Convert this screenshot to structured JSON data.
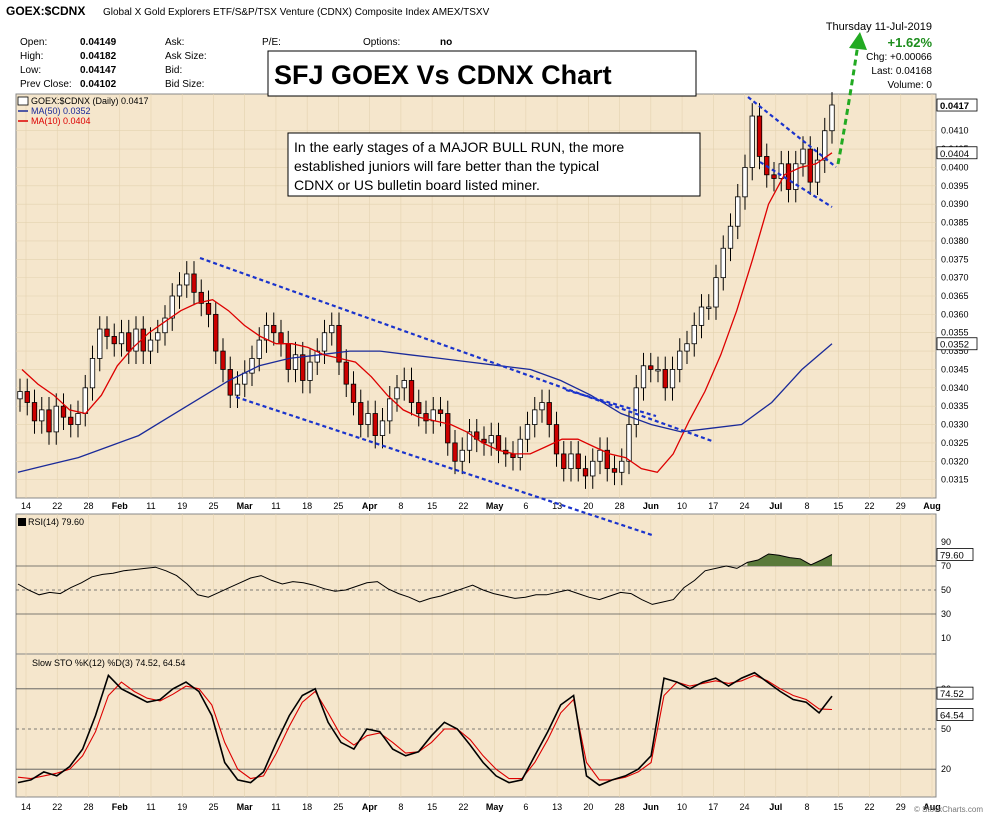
{
  "header": {
    "symbol": "GOEX:$CDNX",
    "description": "Global X Gold Explorers ETF/S&P/TSX Venture (CDNX) Composite Index  AMEX/TSXV",
    "date": "Thursday  11-Jul-2019",
    "watermark": "© StockCharts.com"
  },
  "quote": {
    "rows": [
      {
        "label": "Open:",
        "value": "0.04149"
      },
      {
        "label": "High:",
        "value": "0.04182"
      },
      {
        "label": "Low:",
        "value": "0.04147"
      },
      {
        "label": "Prev Close:",
        "value": "0.04102"
      }
    ],
    "rows2": [
      "Ask:",
      "Ask Size:",
      "Bid:",
      "Bid Size:"
    ],
    "pe_label": "P/E:",
    "options_label": "Options:",
    "options_value": "no",
    "change_pct": "+1.62%",
    "chg": "Chg: +0.00066",
    "last": "Last:  0.04168",
    "volume": "Volume:        0"
  },
  "colors": {
    "background": "#f5e6cc",
    "up": "#ffffff",
    "down": "#cc0000",
    "ma50": "#1a2a99",
    "ma10": "#dd0000",
    "trendline": "#1a33cc",
    "arrow": "#22aa22",
    "rsi_fill": "#5a7a3a",
    "sto_k": "#000000",
    "sto_d": "#dd0000"
  },
  "callout_title": "SFJ GOEX Vs CDNX Chart",
  "callout_text": [
    "In the early stages of a MAJOR BULL RUN, the more",
    "established juniors will fare better than the typical",
    "CDNX or US bulletin board listed miner."
  ],
  "chart_data": [
    {
      "type": "candlestick",
      "legend": [
        "GOEX:$CDNX (Daily) 0.0417",
        "MA(50) 0.0352",
        "MA(10) 0.0404"
      ],
      "ylim": [
        0.031,
        0.042
      ],
      "y_ticks": [
        0.0315,
        0.032,
        0.0325,
        0.033,
        0.0335,
        0.034,
        0.0345,
        0.035,
        0.0355,
        0.036,
        0.0365,
        0.037,
        0.0375,
        0.038,
        0.0385,
        0.039,
        0.0395,
        0.04,
        0.0405,
        0.041
      ],
      "y_tick_labels": [
        "0.0315",
        "0.0320",
        "0.0325",
        "0.0330",
        "0.0335",
        "0.0340",
        "0.0345",
        "0.0350",
        "0.0355",
        "0.0360",
        "0.0365",
        "0.0370",
        "0.0375",
        "0.0380",
        "0.0385",
        "0.0390",
        "0.0395",
        "0.0400",
        "0.0405",
        "0.0410"
      ],
      "price_tags": [
        {
          "label": "0.0417",
          "value": 0.0417
        },
        {
          "label": "0.0404",
          "value": 0.0404
        },
        {
          "label": "0.0352",
          "value": 0.0352
        }
      ],
      "x_labels": [
        "14",
        "22",
        "28",
        "Feb",
        "11",
        "19",
        "25",
        "Mar",
        "11",
        "18",
        "25",
        "Apr",
        "8",
        "15",
        "22",
        "May",
        "6",
        "13",
        "20",
        "28",
        "Jun",
        "10",
        "17",
        "24",
        "Jul",
        "8",
        "15",
        "22",
        "29",
        "Aug"
      ],
      "closes": [
        0.0339,
        0.0336,
        0.0331,
        0.0334,
        0.0328,
        0.0335,
        0.0332,
        0.033,
        0.0333,
        0.034,
        0.0348,
        0.0356,
        0.0354,
        0.0352,
        0.0355,
        0.035,
        0.0356,
        0.035,
        0.0353,
        0.0355,
        0.0359,
        0.0365,
        0.0368,
        0.0371,
        0.0366,
        0.0363,
        0.036,
        0.035,
        0.0345,
        0.0338,
        0.0341,
        0.0344,
        0.0348,
        0.0353,
        0.0357,
        0.0355,
        0.0352,
        0.0345,
        0.0349,
        0.0342,
        0.0347,
        0.035,
        0.0355,
        0.0357,
        0.0347,
        0.0341,
        0.0336,
        0.033,
        0.0333,
        0.0327,
        0.0331,
        0.0337,
        0.034,
        0.0342,
        0.0336,
        0.0333,
        0.0331,
        0.0334,
        0.0333,
        0.0325,
        0.032,
        0.0323,
        0.0328,
        0.0326,
        0.0325,
        0.0327,
        0.0323,
        0.0322,
        0.0321,
        0.0326,
        0.033,
        0.0334,
        0.0336,
        0.033,
        0.0322,
        0.0318,
        0.0322,
        0.0318,
        0.0316,
        0.032,
        0.0323,
        0.0318,
        0.0317,
        0.032,
        0.033,
        0.034,
        0.0346,
        0.0345,
        0.0345,
        0.034,
        0.0345,
        0.035,
        0.0352,
        0.0357,
        0.0362,
        0.0362,
        0.037,
        0.0378,
        0.0384,
        0.0392,
        0.04,
        0.0414,
        0.0403,
        0.0398,
        0.0397,
        0.0401,
        0.0394,
        0.0401,
        0.0405,
        0.0396,
        0.0402,
        0.041,
        0.0417
      ],
      "ma50": [
        0.0317,
        0.0319,
        0.0321,
        0.0324,
        0.0327,
        0.0332,
        0.0337,
        0.0342,
        0.0346,
        0.0348,
        0.0349,
        0.035,
        0.035,
        0.0349,
        0.0348,
        0.0347,
        0.0346,
        0.0345,
        0.0342,
        0.0338,
        0.0333,
        0.033,
        0.0328,
        0.0329,
        0.033,
        0.0336,
        0.0345,
        0.0352
      ],
      "ma10": [
        0.0345,
        0.0341,
        0.0338,
        0.0334,
        0.0333,
        0.0338,
        0.0346,
        0.0351,
        0.0355,
        0.0358,
        0.0361,
        0.0363,
        0.0364,
        0.0361,
        0.0357,
        0.0354,
        0.0352,
        0.0352,
        0.0351,
        0.0349,
        0.0348,
        0.0347,
        0.0343,
        0.0338,
        0.0334,
        0.0332,
        0.0331,
        0.033,
        0.0328,
        0.0325,
        0.0323,
        0.0322,
        0.0322,
        0.0324,
        0.0326,
        0.0326,
        0.0324,
        0.0322,
        0.0321,
        0.0318,
        0.0317,
        0.0322,
        0.0331,
        0.0339,
        0.0349,
        0.0361,
        0.0375,
        0.039,
        0.0398,
        0.04,
        0.0401,
        0.0404
      ]
    },
    {
      "type": "line",
      "legend": [
        "RSI(14) 79.60"
      ],
      "ylim": [
        0,
        100
      ],
      "y_ticks": [
        10,
        30,
        50,
        70,
        90
      ],
      "reference_lines": [
        30,
        50,
        70
      ],
      "last_tag": "79.60",
      "values": [
        55,
        50,
        46,
        48,
        47,
        52,
        56,
        61,
        63,
        64,
        66,
        67,
        68,
        69,
        66,
        62,
        55,
        46,
        44,
        48,
        52,
        56,
        60,
        62,
        58,
        55,
        57,
        56,
        54,
        51,
        49,
        50,
        53,
        56,
        57,
        51,
        47,
        44,
        40,
        43,
        45,
        48,
        51,
        54,
        50,
        47,
        45,
        43,
        44,
        46,
        46,
        48,
        50,
        47,
        44,
        42,
        45,
        48,
        47,
        42,
        38,
        40,
        42,
        52,
        58,
        66,
        68,
        70,
        68,
        73,
        75,
        80,
        79,
        77,
        76,
        71,
        75,
        79.6
      ]
    },
    {
      "type": "line",
      "legend": [
        "Slow STO %K(12) %D(3) 74.52, 64.54"
      ],
      "ylim": [
        0,
        100
      ],
      "y_ticks": [
        20,
        50,
        80
      ],
      "reference_lines": [
        20,
        50,
        80
      ],
      "last_tags": [
        "74.52",
        "64.54"
      ],
      "series": [
        {
          "name": "%K(12)",
          "values": [
            10,
            12,
            18,
            15,
            22,
            35,
            60,
            90,
            80,
            75,
            70,
            72,
            80,
            85,
            78,
            60,
            25,
            12,
            10,
            18,
            40,
            60,
            75,
            80,
            55,
            40,
            35,
            50,
            48,
            35,
            30,
            33,
            45,
            55,
            50,
            38,
            25,
            15,
            10,
            12,
            30,
            48,
            68,
            75,
            15,
            8,
            12,
            15,
            20,
            30,
            88,
            85,
            80,
            85,
            88,
            82,
            88,
            92,
            85,
            78,
            72,
            70,
            62,
            74.52
          ]
        },
        {
          "name": "%D(3)",
          "values": [
            14,
            13,
            15,
            17,
            20,
            30,
            48,
            75,
            85,
            78,
            73,
            71,
            76,
            82,
            80,
            68,
            40,
            20,
            13,
            15,
            32,
            52,
            70,
            78,
            62,
            45,
            38,
            45,
            47,
            40,
            32,
            33,
            40,
            50,
            50,
            42,
            30,
            20,
            13,
            13,
            25,
            42,
            62,
            72,
            25,
            12,
            12,
            14,
            18,
            25,
            75,
            85,
            82,
            84,
            86,
            84,
            86,
            90,
            86,
            80,
            75,
            72,
            65,
            64.54
          ]
        }
      ]
    }
  ]
}
